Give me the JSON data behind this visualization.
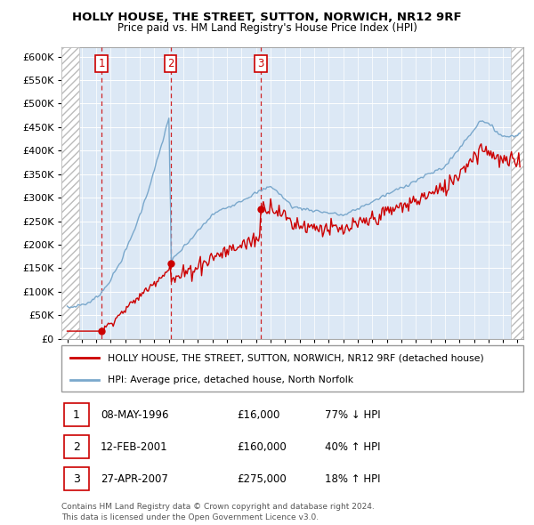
{
  "title": "HOLLY HOUSE, THE STREET, SUTTON, NORWICH, NR12 9RF",
  "subtitle": "Price paid vs. HM Land Registry's House Price Index (HPI)",
  "legend_line1": "HOLLY HOUSE, THE STREET, SUTTON, NORWICH, NR12 9RF (detached house)",
  "legend_line2": "HPI: Average price, detached house, North Norfolk",
  "transactions": [
    {
      "label": "1",
      "date": "08-MAY-1996",
      "year": 1996.36,
      "price": 16000,
      "pct": "77% ↓ HPI"
    },
    {
      "label": "2",
      "date": "12-FEB-2001",
      "year": 2001.12,
      "price": 160000,
      "pct": "40% ↑ HPI"
    },
    {
      "label": "3",
      "date": "27-APR-2007",
      "year": 2007.32,
      "price": 275000,
      "pct": "18% ↑ HPI"
    }
  ],
  "footnote1": "Contains HM Land Registry data © Crown copyright and database right 2024.",
  "footnote2": "This data is licensed under the Open Government Licence v3.0.",
  "ylim": [
    0,
    620000
  ],
  "yticks": [
    0,
    50000,
    100000,
    150000,
    200000,
    250000,
    300000,
    350000,
    400000,
    450000,
    500000,
    550000,
    600000
  ],
  "ytick_labels": [
    "£0",
    "£50K",
    "£100K",
    "£150K",
    "£200K",
    "£250K",
    "£300K",
    "£350K",
    "£400K",
    "£450K",
    "£500K",
    "£550K",
    "£600K"
  ],
  "xlim_min": 1993.6,
  "xlim_max": 2025.4,
  "red_color": "#cc0000",
  "blue_color": "#7aa8cc",
  "bg_color": "#dce8f5",
  "hatch_right_start": 2024.5
}
